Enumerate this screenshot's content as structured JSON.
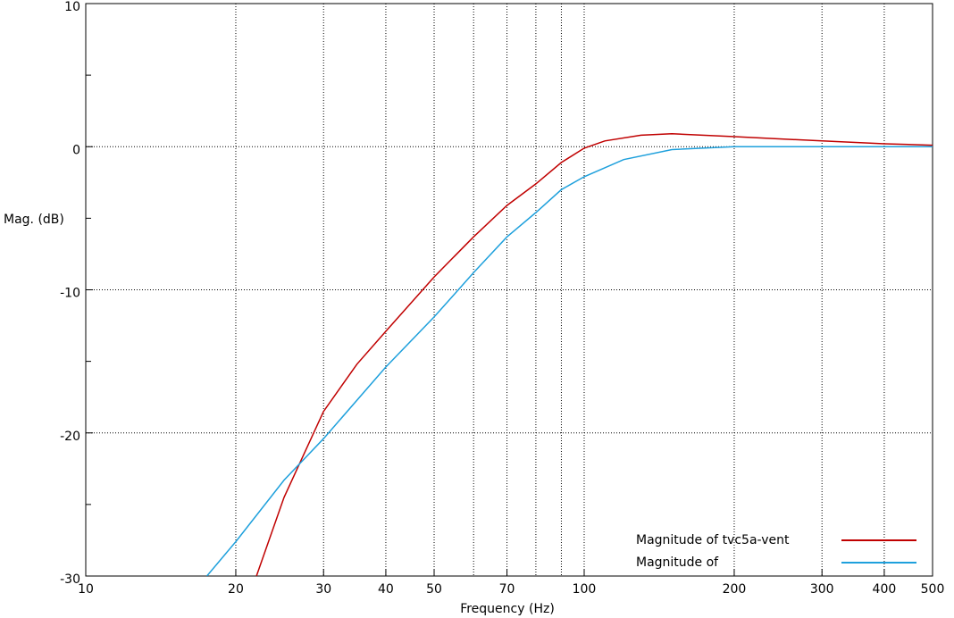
{
  "chart_data": {
    "type": "line",
    "x_label": "Frequency (Hz)",
    "y_label": "Mag. (dB)",
    "x_log": true,
    "xlim": [
      10,
      500
    ],
    "xticks": [
      10,
      20,
      30,
      40,
      50,
      70,
      100,
      200,
      300,
      400,
      500
    ],
    "xgrid": [
      20,
      30,
      40,
      50,
      60,
      70,
      80,
      90,
      100,
      200,
      300,
      400
    ],
    "ylim": [
      -30,
      10
    ],
    "yticks": [
      -30,
      -20,
      -10,
      0,
      10
    ],
    "yminor": [
      -25,
      -15,
      -5,
      5
    ],
    "grid": true,
    "legend": "lower right",
    "series": [
      {
        "name": "Magnitude of tvc5a-vent",
        "color": "#c00000",
        "x": [
          22,
          25,
          30,
          35,
          40,
          50,
          60,
          70,
          80,
          90,
          100,
          110,
          130,
          150,
          200,
          300,
          400,
          500
        ],
        "values": [
          -30,
          -24.5,
          -18.5,
          -15.2,
          -12.9,
          -9.1,
          -6.3,
          -4.1,
          -2.6,
          -1.1,
          -0.1,
          0.4,
          0.8,
          0.9,
          0.7,
          0.4,
          0.2,
          0.1
        ]
      },
      {
        "name": "Magnitude of",
        "color": "#1ea0dc",
        "x": [
          17.5,
          20,
          25,
          30,
          40,
          50,
          60,
          70,
          80,
          90,
          100,
          120,
          150,
          200,
          300,
          500
        ],
        "values": [
          -30,
          -27.6,
          -23.3,
          -20.4,
          -15.4,
          -11.9,
          -8.8,
          -6.3,
          -4.6,
          -3,
          -2.1,
          -0.9,
          -0.2,
          0,
          0,
          0
        ]
      }
    ]
  }
}
